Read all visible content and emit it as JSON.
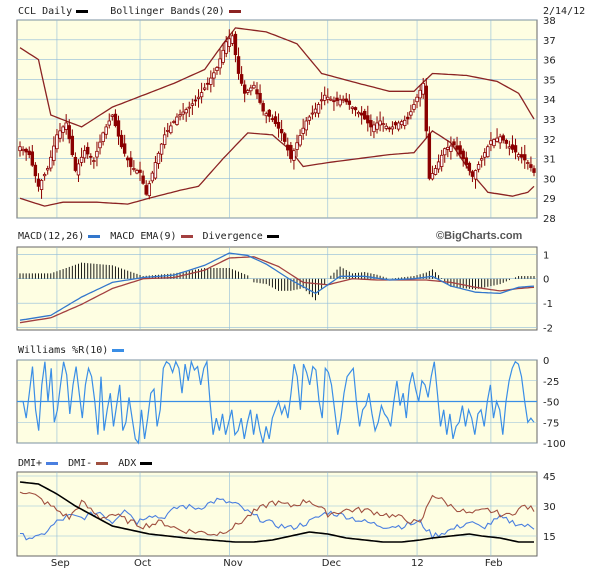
{
  "header": {
    "symbol_label": "CCL Daily",
    "bollinger_label": "Bollinger Bands(20)",
    "date": "2/14/12",
    "macd_label": "MACD(12,26)",
    "macd_ema_label": "MACD EMA(9)",
    "divergence_label": "Divergence",
    "brand": "©BigCharts.com",
    "williams_label": "Williams %R(10)",
    "dmi_plus_label": "DMI+",
    "dmi_minus_label": "DMI-",
    "adx_label": "ADX"
  },
  "colors": {
    "panel_bg": "#fefee2",
    "grid": "#8fbbd9",
    "candle": "#8b0000",
    "band": "#8b2323",
    "macd": "#3377cc",
    "macd_ema": "#a34040",
    "divergence": "#000000",
    "williams": "#3a8ee6",
    "dmi_plus": "#4a7fe0",
    "dmi_minus": "#a05040",
    "adx": "#000000"
  },
  "chart_data": [
    {
      "type": "candlestick",
      "title": "CCL Daily",
      "y_ticks": [
        28,
        29,
        30,
        31,
        32,
        33,
        34,
        35,
        36,
        37,
        38
      ],
      "ylim": [
        28,
        38
      ],
      "x_labels": [
        "Sep",
        "Oct",
        "Nov",
        "Dec",
        "12",
        "Feb"
      ],
      "x_label_positions": [
        12,
        39,
        68,
        100,
        129,
        153
      ],
      "n_days": 168,
      "price_anchors": [
        [
          0,
          31.6
        ],
        [
          3,
          31.2
        ],
        [
          6,
          29.6
        ],
        [
          9,
          30.5
        ],
        [
          12,
          32.2
        ],
        [
          15,
          32.8
        ],
        [
          18,
          30.4
        ],
        [
          21,
          31.4
        ],
        [
          24,
          30.9
        ],
        [
          27,
          32.3
        ],
        [
          30,
          33.2
        ],
        [
          33,
          31.6
        ],
        [
          36,
          30.6
        ],
        [
          39,
          30.3
        ],
        [
          41,
          29.2
        ],
        [
          44,
          30.8
        ],
        [
          47,
          32.2
        ],
        [
          51,
          33.1
        ],
        [
          55,
          33.6
        ],
        [
          58,
          34.1
        ],
        [
          61,
          34.8
        ],
        [
          64,
          35.6
        ],
        [
          67,
          36.9
        ],
        [
          69,
          37.2
        ],
        [
          71,
          35.3
        ],
        [
          73,
          34.3
        ],
        [
          76,
          34.7
        ],
        [
          79,
          33.4
        ],
        [
          82,
          33.0
        ],
        [
          85,
          32.3
        ],
        [
          88,
          31.0
        ],
        [
          90,
          31.8
        ],
        [
          93,
          32.9
        ],
        [
          96,
          33.5
        ],
        [
          99,
          34.2
        ],
        [
          102,
          33.9
        ],
        [
          105,
          34.0
        ],
        [
          108,
          33.6
        ],
        [
          111,
          33.2
        ],
        [
          114,
          32.6
        ],
        [
          117,
          32.9
        ],
        [
          120,
          32.5
        ],
        [
          123,
          32.8
        ],
        [
          126,
          33.0
        ],
        [
          129,
          34.1
        ],
        [
          131,
          34.8
        ],
        [
          133,
          30.0
        ],
        [
          135,
          30.5
        ],
        [
          138,
          31.5
        ],
        [
          141,
          31.7
        ],
        [
          144,
          31.0
        ],
        [
          147,
          30.1
        ],
        [
          150,
          31.0
        ],
        [
          153,
          31.9
        ],
        [
          156,
          32.1
        ],
        [
          159,
          31.6
        ],
        [
          162,
          31.2
        ],
        [
          165,
          30.8
        ],
        [
          167,
          30.3
        ]
      ],
      "upper_band_anchors": [
        [
          0,
          36.6
        ],
        [
          6,
          36.0
        ],
        [
          10,
          33.2
        ],
        [
          20,
          32.6
        ],
        [
          30,
          33.6
        ],
        [
          40,
          34.2
        ],
        [
          50,
          34.8
        ],
        [
          60,
          35.5
        ],
        [
          66,
          36.8
        ],
        [
          70,
          37.6
        ],
        [
          80,
          37.4
        ],
        [
          90,
          36.8
        ],
        [
          98,
          35.3
        ],
        [
          110,
          34.8
        ],
        [
          120,
          34.4
        ],
        [
          128,
          34.4
        ],
        [
          134,
          35.3
        ],
        [
          145,
          35.2
        ],
        [
          155,
          34.9
        ],
        [
          162,
          34.3
        ],
        [
          167,
          33.0
        ]
      ],
      "lower_band_anchors": [
        [
          0,
          29.0
        ],
        [
          8,
          28.6
        ],
        [
          14,
          28.8
        ],
        [
          25,
          28.8
        ],
        [
          35,
          28.7
        ],
        [
          42,
          29.0
        ],
        [
          52,
          29.4
        ],
        [
          58,
          29.6
        ],
        [
          66,
          31.0
        ],
        [
          74,
          32.3
        ],
        [
          82,
          32.2
        ],
        [
          88,
          31.4
        ],
        [
          92,
          30.6
        ],
        [
          100,
          30.8
        ],
        [
          110,
          31.0
        ],
        [
          120,
          31.2
        ],
        [
          128,
          31.3
        ],
        [
          134,
          32.4
        ],
        [
          140,
          31.8
        ],
        [
          146,
          30.4
        ],
        [
          152,
          29.3
        ],
        [
          160,
          29.1
        ],
        [
          165,
          29.3
        ],
        [
          167,
          29.6
        ]
      ]
    },
    {
      "type": "line",
      "title": "MACD(12,26)",
      "y_ticks": [
        1,
        0,
        -1,
        -2
      ],
      "ylim": [
        -2.1,
        1.3
      ],
      "series": [
        {
          "name": "MACD(12,26)",
          "anchors": [
            [
              0,
              -1.7
            ],
            [
              10,
              -1.5
            ],
            [
              20,
              -0.75
            ],
            [
              30,
              -0.15
            ],
            [
              40,
              0.05
            ],
            [
              50,
              0.15
            ],
            [
              60,
              0.55
            ],
            [
              68,
              1.05
            ],
            [
              74,
              0.95
            ],
            [
              80,
              0.6
            ],
            [
              88,
              -0.05
            ],
            [
              96,
              -0.6
            ],
            [
              104,
              0.1
            ],
            [
              112,
              0.1
            ],
            [
              120,
              -0.05
            ],
            [
              128,
              0.0
            ],
            [
              134,
              0.1
            ],
            [
              140,
              -0.3
            ],
            [
              148,
              -0.55
            ],
            [
              156,
              -0.6
            ],
            [
              162,
              -0.35
            ],
            [
              167,
              -0.3
            ]
          ]
        },
        {
          "name": "MACD EMA(9)",
          "anchors": [
            [
              0,
              -1.8
            ],
            [
              10,
              -1.6
            ],
            [
              20,
              -1.05
            ],
            [
              30,
              -0.4
            ],
            [
              40,
              0.0
            ],
            [
              50,
              0.05
            ],
            [
              60,
              0.35
            ],
            [
              68,
              0.85
            ],
            [
              76,
              0.9
            ],
            [
              84,
              0.5
            ],
            [
              92,
              -0.15
            ],
            [
              100,
              -0.25
            ],
            [
              108,
              0.0
            ],
            [
              116,
              -0.05
            ],
            [
              124,
              -0.05
            ],
            [
              132,
              -0.05
            ],
            [
              140,
              -0.15
            ],
            [
              148,
              -0.35
            ],
            [
              156,
              -0.5
            ],
            [
              162,
              -0.4
            ],
            [
              167,
              -0.35
            ]
          ]
        }
      ]
    },
    {
      "type": "line",
      "title": "Williams %R(10)",
      "y_ticks": [
        0,
        -25,
        -50,
        -75,
        -100
      ],
      "ylim": [
        -100,
        0
      ],
      "reference_line": -50,
      "series": [
        {
          "name": "Williams %R(10)",
          "values": [
            -50,
            -50,
            -70,
            -40,
            -8,
            -60,
            -85,
            -30,
            -2,
            -50,
            -10,
            -75,
            -60,
            -30,
            -2,
            -18,
            -65,
            -30,
            -8,
            -40,
            -70,
            -30,
            -10,
            -20,
            -50,
            -90,
            -20,
            -85,
            -60,
            -40,
            -80,
            -55,
            -30,
            -85,
            -75,
            -45,
            -70,
            -95,
            -100,
            -60,
            -95,
            -70,
            -40,
            -35,
            -80,
            -60,
            -10,
            -2,
            -5,
            -15,
            -2,
            -10,
            -40,
            -5,
            -25,
            -2,
            -12,
            -8,
            -30,
            -10,
            -2,
            -50,
            -90,
            -70,
            -85,
            -65,
            -90,
            -75,
            -60,
            -90,
            -85,
            -70,
            -95,
            -75,
            -60,
            -90,
            -65,
            -85,
            -100,
            -80,
            -95,
            -70,
            -60,
            -50,
            -65,
            -55,
            -70,
            -40,
            -5,
            -20,
            -60,
            -5,
            -15,
            -30,
            -8,
            -12,
            -50,
            -70,
            -10,
            -15,
            -30,
            -60,
            -90,
            -70,
            -40,
            -20,
            -15,
            -10,
            -50,
            -80,
            -60,
            -55,
            -40,
            -65,
            -85,
            -75,
            -55,
            -65,
            -70,
            -80,
            -50,
            -25,
            -55,
            -40,
            -70,
            -30,
            -15,
            -35,
            -50,
            -25,
            -30,
            -45,
            -20,
            -2,
            -40,
            -80,
            -60,
            -90,
            -65,
            -95,
            -80,
            -75,
            -55,
            -80,
            -60,
            -70,
            -90,
            -65,
            -60,
            -80,
            -50,
            -30,
            -70,
            -50,
            -60,
            -90,
            -50,
            -25,
            -10,
            -2,
            -5,
            -20,
            -50,
            -75,
            -70,
            -75
          ]
        }
      ]
    },
    {
      "type": "line",
      "title": "DMI+ / DMI- / ADX",
      "y_ticks": [
        45,
        30,
        15
      ],
      "ylim": [
        5,
        47
      ],
      "series": [
        {
          "name": "DMI+",
          "anchors": [
            [
              0,
              15
            ],
            [
              6,
              14
            ],
            [
              12,
              22
            ],
            [
              16,
              25
            ],
            [
              20,
              24
            ],
            [
              26,
              27
            ],
            [
              30,
              22
            ],
            [
              34,
              29
            ],
            [
              38,
              22
            ],
            [
              42,
              26
            ],
            [
              46,
              24
            ],
            [
              52,
              30
            ],
            [
              58,
              29
            ],
            [
              64,
              33
            ],
            [
              70,
              31
            ],
            [
              76,
              25
            ],
            [
              82,
              21
            ],
            [
              88,
              19
            ],
            [
              94,
              22
            ],
            [
              100,
              27
            ],
            [
              106,
              25
            ],
            [
              112,
              22
            ],
            [
              118,
              20
            ],
            [
              124,
              20
            ],
            [
              130,
              22
            ],
            [
              134,
              15
            ],
            [
              140,
              18
            ],
            [
              146,
              22
            ],
            [
              150,
              19
            ],
            [
              156,
              24
            ],
            [
              162,
              21
            ],
            [
              167,
              19
            ]
          ]
        },
        {
          "name": "DMI-",
          "anchors": [
            [
              0,
              38
            ],
            [
              5,
              35
            ],
            [
              10,
              30
            ],
            [
              16,
              24
            ],
            [
              20,
              32
            ],
            [
              26,
              24
            ],
            [
              30,
              26
            ],
            [
              36,
              22
            ],
            [
              40,
              20
            ],
            [
              46,
              22
            ],
            [
              52,
              18
            ],
            [
              58,
              17
            ],
            [
              64,
              16
            ],
            [
              70,
              20
            ],
            [
              76,
              27
            ],
            [
              82,
              32
            ],
            [
              88,
              30
            ],
            [
              94,
              33
            ],
            [
              100,
              26
            ],
            [
              106,
              28
            ],
            [
              112,
              28
            ],
            [
              118,
              26
            ],
            [
              124,
              24
            ],
            [
              130,
              21
            ],
            [
              134,
              36
            ],
            [
              140,
              30
            ],
            [
              146,
              26
            ],
            [
              152,
              28
            ],
            [
              158,
              25
            ],
            [
              164,
              30
            ],
            [
              167,
              28
            ]
          ]
        },
        {
          "name": "ADX",
          "anchors": [
            [
              0,
              42
            ],
            [
              6,
              41
            ],
            [
              12,
              36
            ],
            [
              18,
              30
            ],
            [
              24,
              25
            ],
            [
              30,
              20
            ],
            [
              36,
              18
            ],
            [
              42,
              16
            ],
            [
              48,
              15
            ],
            [
              54,
              14
            ],
            [
              62,
              13
            ],
            [
              70,
              12
            ],
            [
              76,
              12
            ],
            [
              82,
              13
            ],
            [
              88,
              15
            ],
            [
              94,
              17
            ],
            [
              100,
              16
            ],
            [
              106,
              14
            ],
            [
              112,
              13
            ],
            [
              118,
              12
            ],
            [
              124,
              12
            ],
            [
              130,
              13
            ],
            [
              134,
              14
            ],
            [
              140,
              15
            ],
            [
              146,
              16
            ],
            [
              150,
              15
            ],
            [
              156,
              14
            ],
            [
              162,
              12
            ],
            [
              167,
              12
            ]
          ]
        }
      ]
    }
  ]
}
